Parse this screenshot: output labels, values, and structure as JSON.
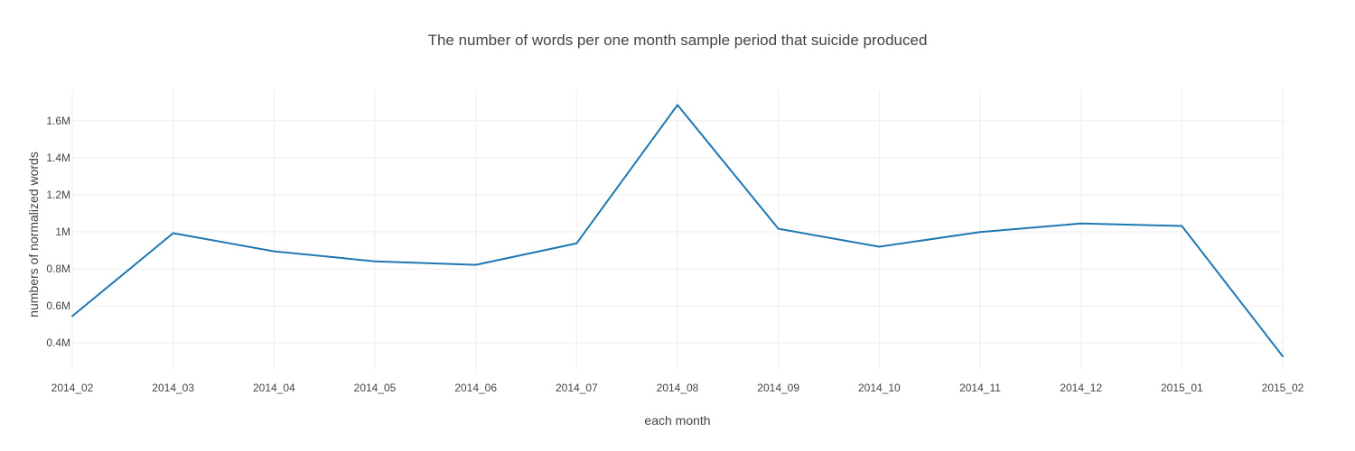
{
  "chart_data": {
    "type": "line",
    "title": "The number of words per one month sample period that suicide produced",
    "xlabel": "each month",
    "ylabel": "numbers of normalized words",
    "categories": [
      "2014_02",
      "2014_03",
      "2014_04",
      "2014_05",
      "2014_06",
      "2014_07",
      "2014_08",
      "2014_09",
      "2014_10",
      "2014_11",
      "2014_12",
      "2015_01",
      "2015_02"
    ],
    "series": [
      {
        "values": [
          545000,
          993000,
          895000,
          841000,
          822000,
          938000,
          1685000,
          1017000,
          920000,
          999000,
          1045000,
          1032000,
          328000
        ]
      }
    ],
    "y_ticks": [
      400000,
      600000,
      800000,
      1000000,
      1200000,
      1400000,
      1600000
    ],
    "y_tick_labels": [
      "0.4M",
      "0.6M",
      "0.8M",
      "1M",
      "1.2M",
      "1.4M",
      "1.6M"
    ],
    "ylim": [
      255000,
      1765000
    ],
    "grid": true,
    "line_color": "#1f77b4",
    "grid_color": "#eeeeee"
  }
}
